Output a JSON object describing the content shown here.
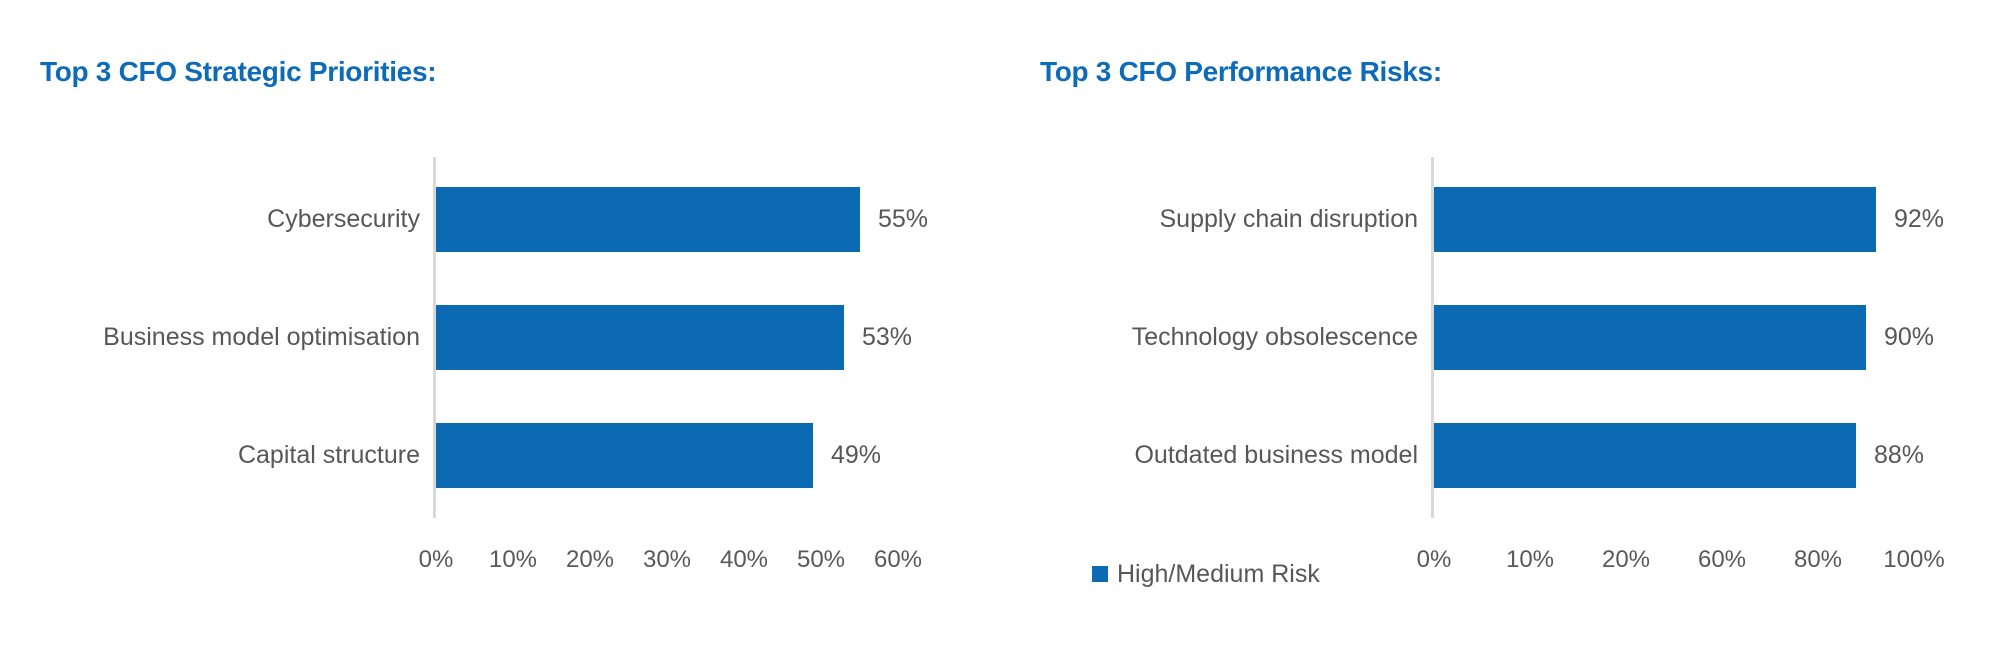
{
  "colors": {
    "bar_blue": "#0c6ab2",
    "title_blue": "#0e6bb8",
    "label_gray": "#575757",
    "tick_gray": "#595959",
    "axis_gray": "#d9d9d9"
  },
  "chart_data": [
    {
      "type": "bar",
      "orientation": "horizontal",
      "title": "Top 3 CFO Strategic Priorities:",
      "categories": [
        "Cybersecurity",
        "Business model optimisation",
        "Capital structure"
      ],
      "values": [
        55,
        53,
        49
      ],
      "value_labels": [
        "55%",
        "53%",
        "49%"
      ],
      "x_tick_labels": [
        "0%",
        "10%",
        "20%",
        "30%",
        "40%",
        "50%",
        "60%"
      ],
      "xlim": [
        0,
        60
      ],
      "grid": false,
      "legend": null,
      "bar_color": "#0c6ab2"
    },
    {
      "type": "bar",
      "orientation": "horizontal",
      "title": "Top 3 CFO Performance Risks:",
      "categories": [
        "Supply chain disruption",
        "Technology obsolescence",
        "Outdated business model"
      ],
      "values": [
        92,
        90,
        88
      ],
      "value_labels": [
        "92%",
        "90%",
        "88%"
      ],
      "x_tick_labels": [
        "0%",
        "10%",
        "20%",
        "60%",
        "80%",
        "100%"
      ],
      "xlim": [
        0,
        100
      ],
      "grid": false,
      "legend": {
        "label": "High/Medium Risk",
        "position": "bottom-left"
      },
      "bar_color": "#0c6ab2"
    }
  ]
}
